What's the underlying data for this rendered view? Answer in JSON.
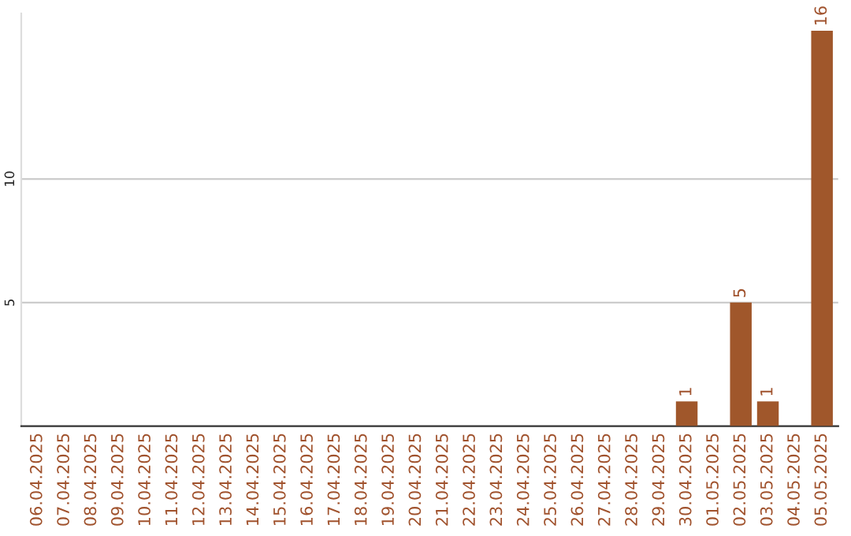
{
  "chart_data": {
    "type": "bar",
    "categories": [
      "06.04.2025",
      "07.04.2025",
      "08.04.2025",
      "09.04.2025",
      "10.04.2025",
      "11.04.2025",
      "12.04.2025",
      "13.04.2025",
      "14.04.2025",
      "15.04.2025",
      "16.04.2025",
      "17.04.2025",
      "18.04.2025",
      "19.04.2025",
      "20.04.2025",
      "21.04.2025",
      "22.04.2025",
      "23.04.2025",
      "24.04.2025",
      "25.04.2025",
      "26.04.2025",
      "27.04.2025",
      "28.04.2025",
      "29.04.2025",
      "30.04.2025",
      "01.05.2025",
      "02.05.2025",
      "03.05.2025",
      "04.05.2025",
      "05.05.2025"
    ],
    "values": [
      0,
      0,
      0,
      0,
      0,
      0,
      0,
      0,
      0,
      0,
      0,
      0,
      0,
      0,
      0,
      0,
      0,
      0,
      0,
      0,
      0,
      0,
      0,
      0,
      1,
      0,
      5,
      1,
      0,
      16
    ],
    "value_labels": [
      null,
      null,
      null,
      null,
      null,
      null,
      null,
      null,
      null,
      null,
      null,
      null,
      null,
      null,
      null,
      null,
      null,
      null,
      null,
      null,
      null,
      null,
      null,
      null,
      "1",
      null,
      "5",
      "1",
      null,
      "16"
    ],
    "color": "#a0572b",
    "ylim": [
      0,
      16.7
    ],
    "yticks": [
      5,
      10
    ],
    "grid": "y",
    "legend": false
  }
}
